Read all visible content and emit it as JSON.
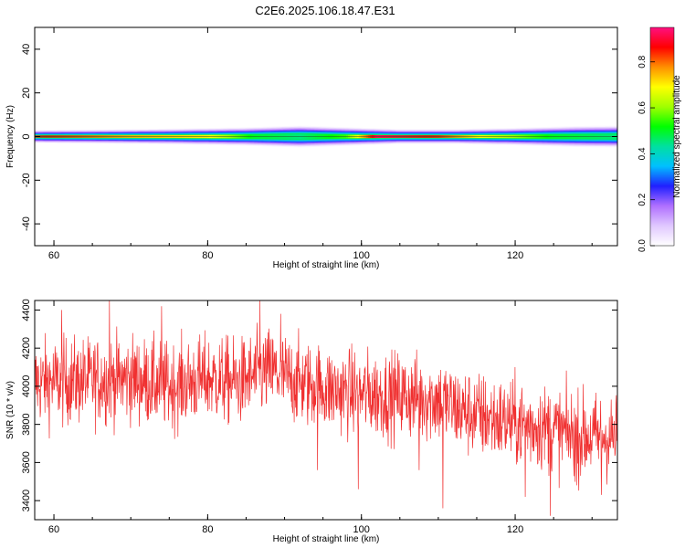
{
  "title": "C2E6.2025.106.18.47.E31",
  "chart_data": [
    {
      "type": "heatmap",
      "title": "C2E6.2025.106.18.47.E31",
      "xlabel": "Height of straight line (km)",
      "ylabel": "Frequency (Hz)",
      "xlim": [
        57.5,
        133.3
      ],
      "ylim": [
        -50,
        50
      ],
      "x_ticks": [
        "60",
        "80",
        "100",
        "120"
      ],
      "y_ticks": [
        "-40",
        "-20",
        "0",
        "20",
        "40"
      ],
      "grid": false,
      "colorbar": {
        "label": "Normalized spectral amplitude",
        "range": [
          0,
          0.95
        ],
        "ticks": [
          "0.0",
          "0.2",
          "0.4",
          "0.6",
          "0.8"
        ],
        "colors": [
          "#ffffff",
          "#e0c8ff",
          "#b070ff",
          "#2020ff",
          "#00c0ff",
          "#00e0a0",
          "#00ff00",
          "#a0ff00",
          "#ffff00",
          "#ff9000",
          "#ff0000",
          "#ff1080"
        ]
      },
      "band": {
        "center_freq_hz": 0,
        "core_halfwidth_hz": [
          [
            57.5,
            1.0
          ],
          [
            65,
            1.2
          ],
          [
            75,
            1.4
          ],
          [
            85,
            1.8
          ],
          [
            92,
            2.6
          ],
          [
            97,
            1.8
          ],
          [
            105,
            1.2
          ],
          [
            112,
            1.2
          ],
          [
            120,
            1.6
          ],
          [
            128,
            2.0
          ],
          [
            133.3,
            2.2
          ]
        ],
        "halo_halfwidth_hz": [
          [
            57.5,
            3.0
          ],
          [
            65,
            3.2
          ],
          [
            75,
            3.6
          ],
          [
            85,
            4.2
          ],
          [
            92,
            5.0
          ],
          [
            97,
            4.4
          ],
          [
            105,
            3.4
          ],
          [
            112,
            3.4
          ],
          [
            120,
            4.0
          ],
          [
            128,
            4.8
          ],
          [
            133.3,
            5.0
          ]
        ],
        "peak_amplitude": [
          [
            57.5,
            0.88
          ],
          [
            70,
            0.75
          ],
          [
            80,
            0.7
          ],
          [
            86,
            0.5
          ],
          [
            92,
            0.45
          ],
          [
            98,
            0.55
          ],
          [
            102,
            0.92
          ],
          [
            110,
            0.85
          ],
          [
            115,
            0.7
          ],
          [
            120,
            0.6
          ],
          [
            125,
            0.5
          ],
          [
            133.3,
            0.45
          ]
        ]
      }
    },
    {
      "type": "line",
      "xlabel": "Height of straight line (km)",
      "ylabel": "SNR (10 * v/v)",
      "xlim": [
        57.5,
        133.3
      ],
      "ylim": [
        3300,
        4450
      ],
      "x_ticks": [
        "60",
        "80",
        "100",
        "120"
      ],
      "y_ticks": [
        "3400",
        "3600",
        "3800",
        "4000",
        "4200",
        "4400"
      ],
      "grid": false,
      "series_color": "#f03030",
      "trend": [
        [
          57.5,
          4020
        ],
        [
          65,
          4030
        ],
        [
          70,
          4040
        ],
        [
          75,
          4000
        ],
        [
          80,
          4040
        ],
        [
          84,
          4020
        ],
        [
          88,
          4080
        ],
        [
          92,
          4020
        ],
        [
          96,
          3980
        ],
        [
          100,
          3960
        ],
        [
          105,
          3950
        ],
        [
          110,
          3930
        ],
        [
          113,
          3870
        ],
        [
          118,
          3820
        ],
        [
          123,
          3790
        ],
        [
          128,
          3740
        ],
        [
          133.3,
          3730
        ]
      ],
      "spread_amplitude": 150,
      "samples": 1600,
      "spikes": [
        [
          67.2,
          4450
        ],
        [
          86.8,
          4450
        ],
        [
          74.0,
          4420
        ],
        [
          89.5,
          4380
        ],
        [
          61.0,
          4400
        ],
        [
          110.6,
          3360
        ],
        [
          124.6,
          3320
        ],
        [
          99.6,
          3460
        ],
        [
          107.5,
          3560
        ],
        [
          94.3,
          3560
        ],
        [
          131.2,
          3430
        ],
        [
          121.3,
          3420
        ],
        [
          128.0,
          3480
        ]
      ]
    }
  ]
}
